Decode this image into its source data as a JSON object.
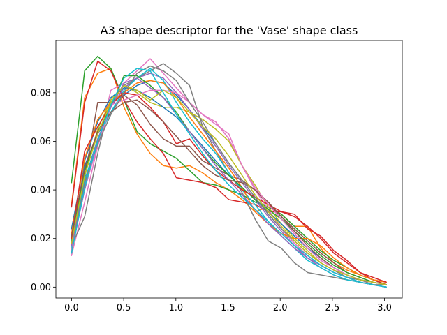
{
  "chart_data": {
    "type": "line",
    "title": "A3 shape descriptor for the 'Vase' shape class",
    "xlabel": "",
    "ylabel": "",
    "xlim": [
      -0.15,
      3.17
    ],
    "ylim": [
      -0.0045,
      0.1015
    ],
    "xticks": [
      0.0,
      0.5,
      1.0,
      1.5,
      2.0,
      2.5,
      3.0
    ],
    "xtick_labels": [
      "0.0",
      "0.5",
      "1.0",
      "1.5",
      "2.0",
      "2.5",
      "3.0"
    ],
    "yticks": [
      0.0,
      0.02,
      0.04,
      0.06,
      0.08
    ],
    "ytick_labels": [
      "0.00",
      "0.02",
      "0.04",
      "0.06",
      "0.08"
    ],
    "grid": false,
    "legend": "none",
    "x": [
      0.0,
      0.126,
      0.251,
      0.377,
      0.503,
      0.628,
      0.754,
      0.88,
      1.005,
      1.131,
      1.257,
      1.382,
      1.508,
      1.634,
      1.759,
      1.885,
      2.011,
      2.136,
      2.262,
      2.388,
      2.513,
      2.639,
      2.765,
      2.89,
      3.016
    ],
    "series": [
      {
        "color": "#1f77b4",
        "values": [
          0.019,
          0.05,
          0.063,
          0.072,
          0.079,
          0.083,
          0.085,
          0.084,
          0.079,
          0.073,
          0.066,
          0.059,
          0.051,
          0.044,
          0.037,
          0.03,
          0.024,
          0.018,
          0.013,
          0.009,
          0.006,
          0.004,
          0.003,
          0.002,
          0.001
        ]
      },
      {
        "color": "#ff7f0e",
        "values": [
          0.034,
          0.078,
          0.088,
          0.09,
          0.074,
          0.063,
          0.055,
          0.05,
          0.049,
          0.05,
          0.047,
          0.043,
          0.04,
          0.036,
          0.031,
          0.033,
          0.03,
          0.025,
          0.025,
          0.016,
          0.01,
          0.007,
          0.005,
          0.003,
          0.002
        ]
      },
      {
        "color": "#2ca02c",
        "values": [
          0.043,
          0.089,
          0.095,
          0.09,
          0.077,
          0.064,
          0.059,
          0.056,
          0.053,
          0.048,
          0.043,
          0.042,
          0.04,
          0.038,
          0.035,
          0.033,
          0.03,
          0.025,
          0.02,
          0.015,
          0.011,
          0.008,
          0.005,
          0.003,
          0.001
        ]
      },
      {
        "color": "#d62728",
        "values": [
          0.033,
          0.076,
          0.093,
          0.089,
          0.077,
          0.068,
          0.061,
          0.055,
          0.045,
          0.044,
          0.043,
          0.041,
          0.036,
          0.035,
          0.034,
          0.031,
          0.031,
          0.03,
          0.024,
          0.021,
          0.015,
          0.011,
          0.006,
          0.003,
          0.001
        ]
      },
      {
        "color": "#9467bd",
        "values": [
          0.015,
          0.04,
          0.06,
          0.074,
          0.082,
          0.086,
          0.088,
          0.086,
          0.08,
          0.073,
          0.065,
          0.058,
          0.05,
          0.043,
          0.036,
          0.029,
          0.023,
          0.017,
          0.012,
          0.008,
          0.005,
          0.003,
          0.002,
          0.001,
          0.0
        ]
      },
      {
        "color": "#8c564b",
        "values": [
          0.017,
          0.045,
          0.076,
          0.076,
          0.079,
          0.075,
          0.067,
          0.061,
          0.058,
          0.058,
          0.052,
          0.049,
          0.046,
          0.044,
          0.04,
          0.034,
          0.029,
          0.024,
          0.019,
          0.014,
          0.01,
          0.006,
          0.004,
          0.002,
          0.001
        ]
      },
      {
        "color": "#e377c2",
        "values": [
          0.013,
          0.035,
          0.058,
          0.081,
          0.084,
          0.089,
          0.094,
          0.088,
          0.082,
          0.076,
          0.071,
          0.068,
          0.061,
          0.05,
          0.04,
          0.032,
          0.024,
          0.018,
          0.013,
          0.009,
          0.006,
          0.004,
          0.002,
          0.001,
          0.0
        ]
      },
      {
        "color": "#7f7f7f",
        "values": [
          0.017,
          0.029,
          0.055,
          0.077,
          0.083,
          0.086,
          0.089,
          0.092,
          0.088,
          0.083,
          0.066,
          0.056,
          0.047,
          0.039,
          0.028,
          0.019,
          0.016,
          0.01,
          0.006,
          0.005,
          0.004,
          0.003,
          0.002,
          0.001,
          0.0
        ]
      },
      {
        "color": "#bcbd22",
        "values": [
          0.02,
          0.046,
          0.065,
          0.077,
          0.083,
          0.08,
          0.076,
          0.074,
          0.074,
          0.072,
          0.069,
          0.065,
          0.06,
          0.05,
          0.042,
          0.033,
          0.026,
          0.02,
          0.015,
          0.01,
          0.007,
          0.004,
          0.003,
          0.002,
          0.001
        ]
      },
      {
        "color": "#17becf",
        "values": [
          0.016,
          0.044,
          0.061,
          0.072,
          0.081,
          0.086,
          0.09,
          0.085,
          0.076,
          0.068,
          0.061,
          0.055,
          0.047,
          0.04,
          0.034,
          0.027,
          0.021,
          0.016,
          0.011,
          0.008,
          0.005,
          0.003,
          0.002,
          0.001,
          0.0
        ]
      },
      {
        "color": "#1f77b4",
        "values": [
          0.024,
          0.052,
          0.068,
          0.078,
          0.082,
          0.081,
          0.078,
          0.074,
          0.07,
          0.064,
          0.058,
          0.052,
          0.046,
          0.041,
          0.036,
          0.031,
          0.026,
          0.021,
          0.016,
          0.012,
          0.008,
          0.005,
          0.003,
          0.002,
          0.001
        ]
      },
      {
        "color": "#ff7f0e",
        "values": [
          0.022,
          0.053,
          0.069,
          0.076,
          0.08,
          0.084,
          0.085,
          0.084,
          0.078,
          0.07,
          0.063,
          0.056,
          0.049,
          0.041,
          0.031,
          0.026,
          0.022,
          0.02,
          0.02,
          0.017,
          0.012,
          0.008,
          0.005,
          0.003,
          0.002
        ]
      },
      {
        "color": "#2ca02c",
        "values": [
          0.018,
          0.048,
          0.064,
          0.074,
          0.087,
          0.087,
          0.083,
          0.078,
          0.072,
          0.064,
          0.057,
          0.051,
          0.046,
          0.041,
          0.036,
          0.032,
          0.028,
          0.023,
          0.018,
          0.013,
          0.009,
          0.006,
          0.004,
          0.002,
          0.001
        ]
      },
      {
        "color": "#d62728",
        "values": [
          0.02,
          0.056,
          0.066,
          0.075,
          0.08,
          0.079,
          0.074,
          0.068,
          0.059,
          0.061,
          0.054,
          0.048,
          0.044,
          0.04,
          0.037,
          0.034,
          0.031,
          0.029,
          0.025,
          0.02,
          0.014,
          0.01,
          0.006,
          0.004,
          0.002
        ]
      },
      {
        "color": "#9467bd",
        "values": [
          0.017,
          0.042,
          0.061,
          0.074,
          0.084,
          0.086,
          0.082,
          0.078,
          0.071,
          0.064,
          0.057,
          0.05,
          0.044,
          0.038,
          0.032,
          0.026,
          0.021,
          0.016,
          0.012,
          0.009,
          0.006,
          0.004,
          0.002,
          0.001,
          0.0
        ]
      },
      {
        "color": "#8c564b",
        "values": [
          0.021,
          0.049,
          0.064,
          0.072,
          0.076,
          0.077,
          0.073,
          0.068,
          0.062,
          0.056,
          0.05,
          0.046,
          0.044,
          0.043,
          0.04,
          0.035,
          0.029,
          0.023,
          0.017,
          0.012,
          0.008,
          0.005,
          0.003,
          0.002,
          0.001
        ]
      },
      {
        "color": "#e377c2",
        "values": [
          0.015,
          0.041,
          0.058,
          0.075,
          0.077,
          0.079,
          0.081,
          0.081,
          0.08,
          0.076,
          0.071,
          0.067,
          0.063,
          0.05,
          0.041,
          0.034,
          0.028,
          0.022,
          0.016,
          0.011,
          0.008,
          0.005,
          0.003,
          0.002,
          0.001
        ]
      },
      {
        "color": "#7f7f7f",
        "values": [
          0.014,
          0.043,
          0.059,
          0.071,
          0.08,
          0.088,
          0.091,
          0.089,
          0.085,
          0.076,
          0.068,
          0.059,
          0.051,
          0.044,
          0.037,
          0.03,
          0.024,
          0.019,
          0.014,
          0.01,
          0.007,
          0.004,
          0.003,
          0.001,
          0.001
        ]
      },
      {
        "color": "#bcbd22",
        "values": [
          0.018,
          0.046,
          0.063,
          0.076,
          0.083,
          0.081,
          0.077,
          0.081,
          0.078,
          0.072,
          0.066,
          0.061,
          0.054,
          0.046,
          0.038,
          0.031,
          0.025,
          0.019,
          0.014,
          0.01,
          0.007,
          0.005,
          0.003,
          0.002,
          0.001
        ]
      },
      {
        "color": "#17becf",
        "values": [
          0.014,
          0.041,
          0.06,
          0.075,
          0.086,
          0.09,
          0.089,
          0.08,
          0.071,
          0.063,
          0.055,
          0.048,
          0.042,
          0.037,
          0.032,
          0.027,
          0.022,
          0.017,
          0.013,
          0.009,
          0.006,
          0.004,
          0.002,
          0.001,
          0.0
        ]
      }
    ]
  }
}
